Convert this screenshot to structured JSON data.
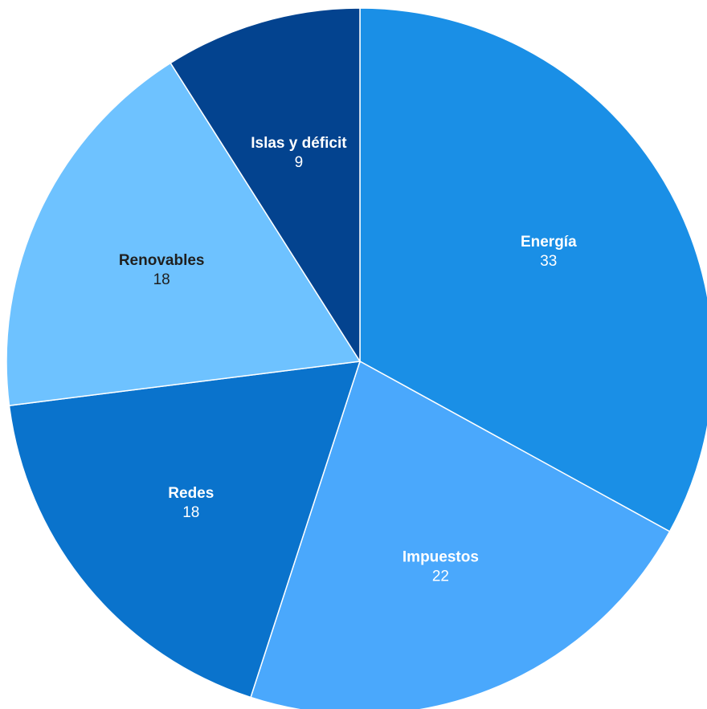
{
  "chart_data": {
    "type": "pie",
    "title": "",
    "slices": [
      {
        "label": "Energía",
        "value": 33,
        "color": "#1a8fe6",
        "label_color": "#ffffff"
      },
      {
        "label": "Impuestos",
        "value": 22,
        "color": "#4aa8fc",
        "label_color": "#ffffff"
      },
      {
        "label": "Redes",
        "value": 18,
        "color": "#0a73cc",
        "label_color": "#ffffff"
      },
      {
        "label": "Renovables",
        "value": 18,
        "color": "#6ec2ff",
        "label_color": "#1f1f1f"
      },
      {
        "label": "Islas y déficit",
        "value": 9,
        "color": "#03438f",
        "label_color": "#ffffff"
      }
    ],
    "start_angle": "12 o'clock",
    "direction": "clockwise",
    "data_labels": "name and value inside slices",
    "legend": "none"
  }
}
